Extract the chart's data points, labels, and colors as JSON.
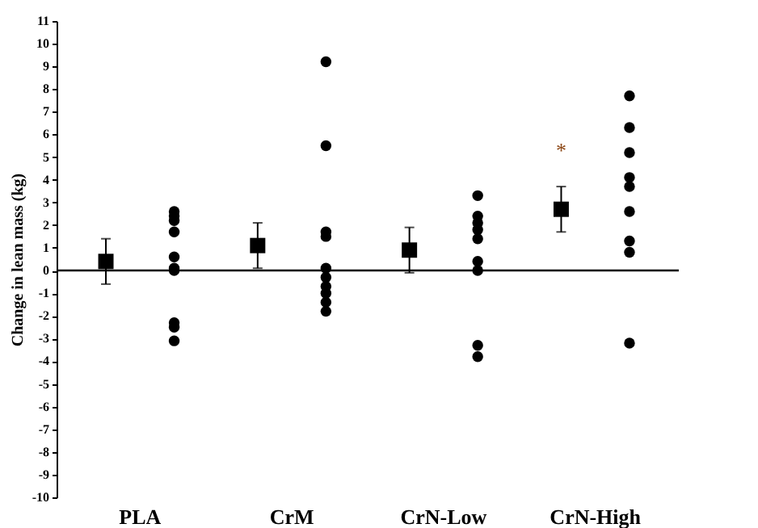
{
  "chart_data": {
    "type": "scatter",
    "ylabel": "Change in lean mass (kg)",
    "categories": [
      "PLA",
      "CrM",
      "CrN-Low",
      "CrN-High"
    ],
    "series": [
      {
        "marker": "square",
        "color": "#000000",
        "values": [
          0.4,
          1.1,
          0.9,
          2.7
        ],
        "errors": [
          1.0,
          1.0,
          1.0,
          1.0
        ]
      },
      {
        "marker": "circle",
        "color": "#000000",
        "x": [
          "PLA",
          "PLA",
          "PLA",
          "PLA",
          "PLA",
          "PLA",
          "PLA",
          "PLA",
          "PLA",
          "PLA",
          "CrM",
          "CrM",
          "CrM",
          "CrM",
          "CrM",
          "CrM",
          "CrM",
          "CrM",
          "CrM",
          "CrM",
          "CrN-Low",
          "CrN-Low",
          "CrN-Low",
          "CrN-Low",
          "CrN-Low",
          "CrN-Low",
          "CrN-Low",
          "CrN-Low",
          "CrN-Low",
          "CrN-High",
          "CrN-High",
          "CrN-High",
          "CrN-High",
          "CrN-High",
          "CrN-High",
          "CrN-High",
          "CrN-High",
          "CrN-High"
        ],
        "values": [
          2.6,
          2.4,
          2.2,
          1.7,
          0.6,
          0.1,
          0.0,
          -2.3,
          -2.5,
          -3.1,
          9.2,
          5.5,
          1.7,
          1.5,
          0.1,
          -0.3,
          -0.7,
          -1.0,
          -1.4,
          -1.8,
          3.3,
          2.4,
          2.1,
          1.8,
          1.4,
          0.4,
          0.0,
          -3.3,
          -3.8,
          7.7,
          6.3,
          5.2,
          4.1,
          3.7,
          2.6,
          1.3,
          0.8,
          -3.2
        ]
      }
    ],
    "ylim": [
      -10,
      11
    ],
    "yticks": [
      -10,
      -9,
      -8,
      -7,
      -6,
      -5,
      -4,
      -3,
      -2,
      -1,
      0,
      1,
      2,
      3,
      4,
      5,
      6,
      7,
      8,
      9,
      10,
      11
    ],
    "ref_lines": [
      {
        "axis": "y",
        "value": 0,
        "color": "#000000"
      }
    ],
    "annotations": [
      "*"
    ],
    "grid": false
  }
}
